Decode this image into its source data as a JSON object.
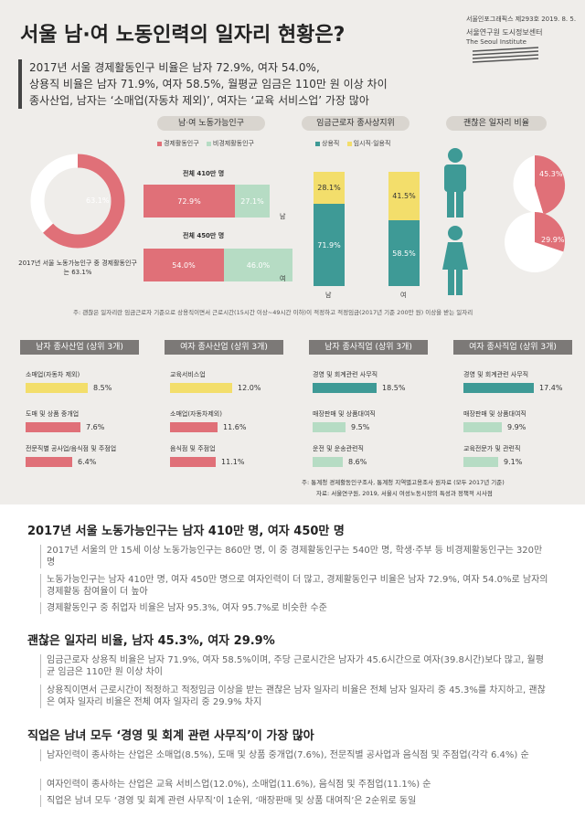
{
  "title": "서울 남·여 노동인력의 일자리 현황은?",
  "meta": {
    "series": "서울인포그래픽스 제293호 2019. 8. 5.",
    "org": "서울연구원 도시정보센터",
    "org_en": "The Seoul Institute"
  },
  "summary": [
    "2017년 서울 경제활동인구 비율은 남자 72.9%, 여자 54.0%,",
    "상용직 비율은 남자 71.9%, 여자 58.5%, 월평균 임금은 110만 원 이상 차이",
    "종사산업, 남자는 ‘소매업(자동차 제외)’, 여자는 ‘교육 서비스업’ 가장 많아"
  ],
  "labor": {
    "header": "남·여 노동가능인구",
    "legend_active": "경제활동인구",
    "legend_inactive": "비경제활동인구",
    "donut_value": "63.1%",
    "donut_note": "2017년 서울 노동가능인구 중 경제활동인구는 63.1%",
    "male_total": "전체 410만 명",
    "female_total": "전체 450만 명",
    "male_label": "남",
    "female_label": "여",
    "male_active": "72.9%",
    "male_inactive": "27.1%",
    "female_active": "54.0%",
    "female_inactive": "46.0%"
  },
  "status": {
    "header": "임금근로자 종사상지위",
    "legend_regular": "상용직",
    "legend_temp": "임시직·일용직",
    "male_temp": "28.1%",
    "male_regular": "71.9%",
    "female_temp": "41.5%",
    "female_regular": "58.5%",
    "male_label": "남",
    "female_label": "여"
  },
  "good": {
    "header": "괜찮은 일자리 비율",
    "male": "45.3%",
    "female": "29.9%"
  },
  "footnote1": "주: 괜찮은 일자리란 임금근로자 기준으로 상용직이면서 근로시간(15시간 이상~49시간 이하)이 적정하고 적정임금(2017년 기준 200만 원) 이상을 받는 일자리",
  "rankings": [
    {
      "header": "남자 종사산업 (상위 3개)",
      "items": [
        {
          "label": "소매업(자동차 제외)",
          "value": "8.5%"
        },
        {
          "label": "도매 및 상품 중개업",
          "value": "7.6%"
        },
        {
          "label": "전문직별 공사업/음식점 및 주점업",
          "value": "6.4%"
        }
      ]
    },
    {
      "header": "여자 종사산업 (상위 3개)",
      "items": [
        {
          "label": "교육서비스업",
          "value": "12.0%"
        },
        {
          "label": "소매업(자동차제외)",
          "value": "11.6%"
        },
        {
          "label": "음식점 및 주점업",
          "value": "11.1%"
        }
      ]
    },
    {
      "header": "남자 종사직업 (상위 3개)",
      "items": [
        {
          "label": "경영 및 회계관련 사무직",
          "value": "18.5%"
        },
        {
          "label": "매장판매 및 상품대여직",
          "value": "9.5%"
        },
        {
          "label": "운전 및 운송관련직",
          "value": "8.6%"
        }
      ]
    },
    {
      "header": "여자 종사직업 (상위 3개)",
      "items": [
        {
          "label": "경영 및 회계관련 사무직",
          "value": "17.4%"
        },
        {
          "label": "매장판매 및 상품대여직",
          "value": "9.9%"
        },
        {
          "label": "교육전문가 및 관련직",
          "value": "9.1%"
        }
      ]
    }
  ],
  "footnote2": "주: 통계청 경제활동인구조사, 통계청 지역별고용조사 원자료 (모두 2017년 기준)",
  "source": "자료: 서울연구원, 2019, 서울시 여성노동시장의 특성과 정책적 시사점",
  "sections": [
    {
      "heading": "2017년 서울 노동가능인구는 남자 410만 명, 여자 450만 명",
      "paras": [
        "2017년 서울의 만 15세 이상 노동가능인구는 860만 명, 이 중 경제활동인구는 540만 명, 학생·주부 등 비경제활동인구는 320만 명",
        "노동가능인구는 남자 410만 명, 여자 450만 명으로 여자인력이 더 많고, 경제활동인구 비율은 남자 72.9%, 여자 54.0%로 남자의 경제활동 참여율이 더 높아",
        "경제활동인구 중 취업자 비율은 남자 95.3%, 여자 95.7%로 비슷한 수준"
      ]
    },
    {
      "heading": "괜찮은 일자리 비율, 남자 45.3%, 여자 29.9%",
      "paras": [
        "임금근로자 상용직 비율은 남자 71.9%, 여자 58.5%이며, 주당 근로시간은 남자가 45.6시간으로 여자(39.8시간)보다 많고, 월평균 임금은 110만 원 이상 차이",
        "상용직이면서 근로시간이 적정하고 적정임금 이상을 받는 괜찮은 남자 일자리 비율은 전체 남자 일자리 중 45.3%를 차지하고, 괜찮은 여자 일자리 비율은 전체 여자 일자리 중 29.9% 차지"
      ]
    },
    {
      "heading": "직업은 남녀 모두 ‘경영 및 회계 관련 사무직’이 가장 많아",
      "paras": [
        "남자인력이 종사하는 산업은 소매업(8.5%), 도매 및 상품 중개업(7.6%), 전문직별 공사업과 음식점 및 주점업(각각 6.4%) 순",
        "여자인력이 종사하는 산업은 교육 서비스업(12.0%), 소매업(11.6%), 음식점 및 주점업(11.1%) 순",
        "직업은 남녀 모두 ‘경영 및 회계 관련 사무직’이 1순위, ‘매장판매 및 상품 대여직’은 2순위로 동일"
      ]
    }
  ],
  "colors": {
    "pink": "#e07078",
    "mint": "#b6dcc4",
    "teal": "#3e9a96",
    "yellow": "#f3de6b",
    "gray": "#7c7977"
  }
}
